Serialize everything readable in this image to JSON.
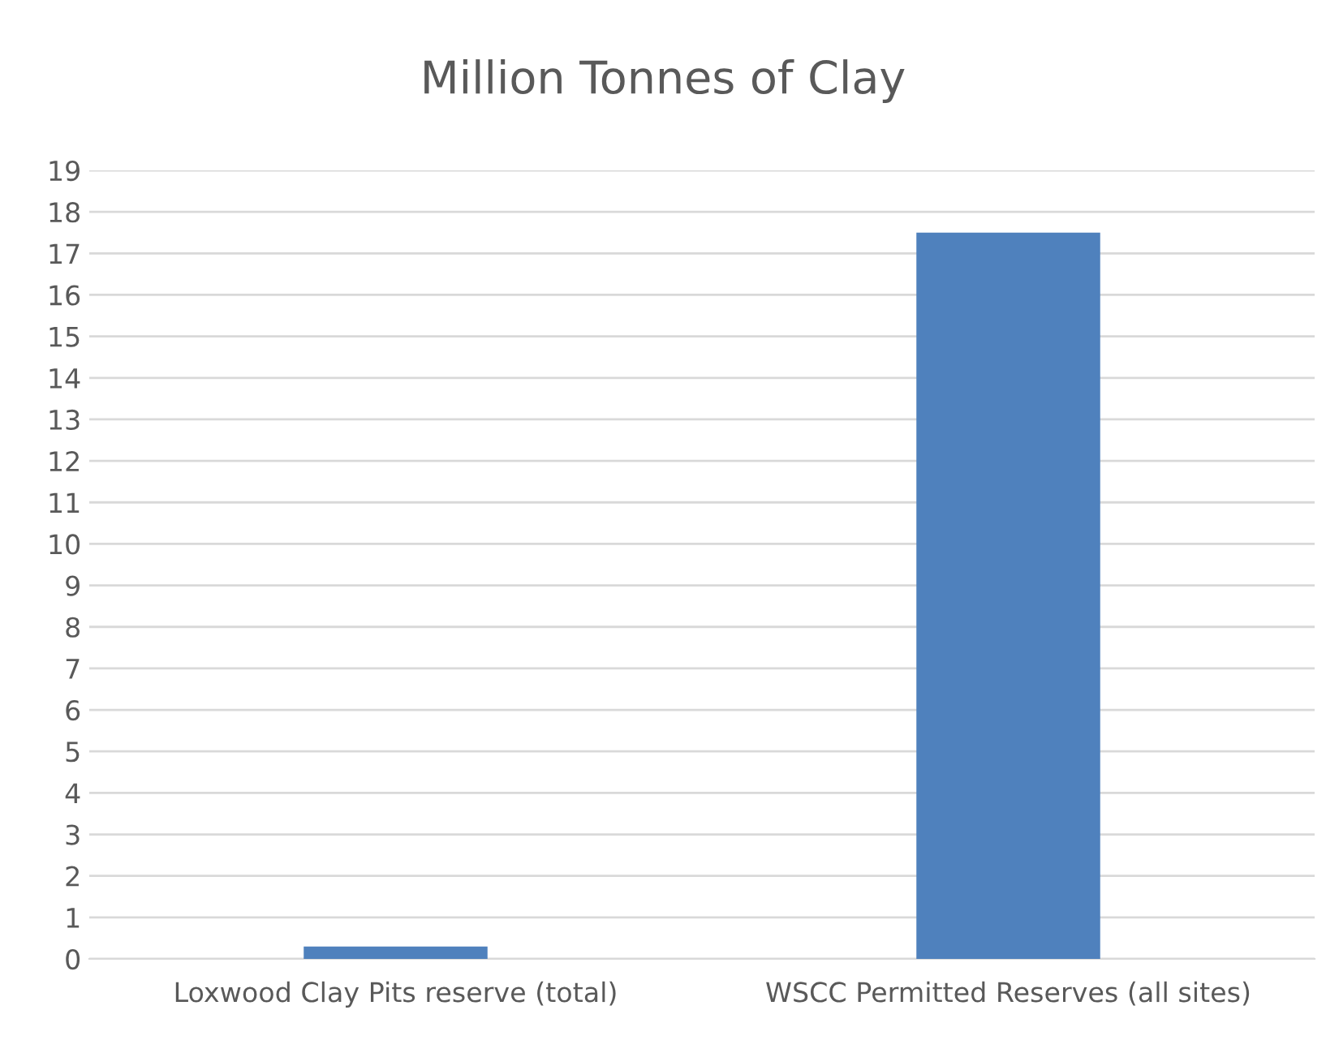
{
  "chart_data": {
    "type": "bar",
    "title": "Million Tonnes of Clay",
    "categories": [
      "Loxwood Clay Pits reserve (total)",
      "WSCC Permitted Reserves (all sites)"
    ],
    "values": [
      0.3,
      17.5
    ],
    "color": "#4f81bd",
    "ylim": [
      0,
      19
    ],
    "yticks": [
      0,
      1,
      2,
      3,
      4,
      5,
      6,
      7,
      8,
      9,
      10,
      11,
      12,
      13,
      14,
      15,
      16,
      17,
      18,
      19
    ],
    "grid": "y",
    "legend": false
  }
}
